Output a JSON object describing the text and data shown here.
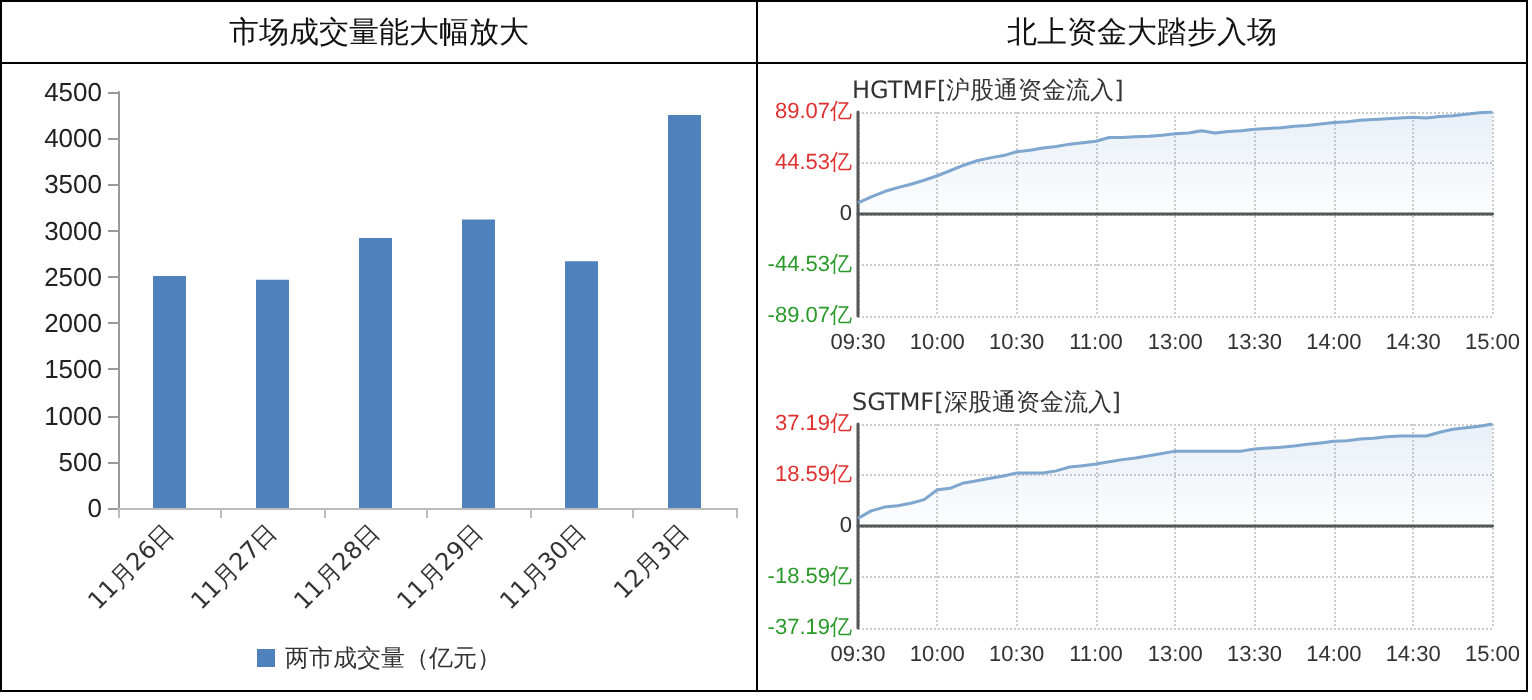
{
  "chart_data": [
    {
      "type": "bar",
      "title": "市场成交量能大幅放大",
      "categories": [
        "11月26日",
        "11月27日",
        "11月28日",
        "11月29日",
        "11月30日",
        "12月3日"
      ],
      "series": [
        {
          "name": "两市成交量（亿元）",
          "color": "#4f81bd",
          "values": [
            2510,
            2470,
            2920,
            3120,
            2670,
            4250
          ]
        }
      ],
      "ylim": [
        0,
        4500
      ],
      "yticks": [
        0,
        500,
        1000,
        1500,
        2000,
        2500,
        3000,
        3500,
        4000,
        4500
      ],
      "grid": false,
      "legend": "bottom"
    },
    {
      "type": "area",
      "title": "北上资金大踏步入场",
      "subtitle": "HGTMF[沪股通资金流入]",
      "categories": [
        "09:30",
        null,
        null,
        null,
        null,
        null,
        "10:00",
        null,
        null,
        null,
        null,
        null,
        "10:30",
        null,
        null,
        null,
        null,
        null,
        "11:00",
        null,
        null,
        null,
        null,
        null,
        "13:00",
        null,
        null,
        null,
        null,
        null,
        "13:30",
        null,
        null,
        null,
        null,
        null,
        "14:00",
        null,
        null,
        null,
        null,
        null,
        "14:30",
        null,
        null,
        null,
        null,
        null,
        "15:00"
      ],
      "series": [
        {
          "color": "#7ea6cf",
          "values": [
            9.8,
            15,
            19.6,
            23,
            26,
            29.5,
            33.4,
            38,
            42.6,
            46.5,
            49,
            51,
            54.4,
            55.7,
            57.6,
            59,
            61,
            62.2,
            63.5,
            66.8,
            66.8,
            67.5,
            68,
            68.8,
            70,
            70.7,
            72.7,
            70.7,
            72,
            72.7,
            74,
            74.7,
            75.3,
            76.6,
            77.3,
            78.6,
            80,
            80.6,
            81.9,
            82.5,
            83.2,
            83.8,
            84.5,
            83.8,
            85.2,
            85.8,
            87.1,
            88.4,
            89.07
          ]
        }
      ],
      "ylim": [
        -89.07,
        89.07
      ],
      "yticks": [
        {
          "value": -89.07,
          "label": "-89.07亿"
        },
        {
          "value": -44.53,
          "label": "-44.53亿"
        },
        0,
        {
          "value": 44.53,
          "label": "44.53亿"
        },
        {
          "value": 89.07,
          "label": "89.07亿"
        }
      ],
      "grid": true,
      "legend": false
    },
    {
      "type": "area",
      "title": "SGTMF[深股通资金流入]",
      "categories": [
        "09:30",
        null,
        null,
        null,
        null,
        null,
        "10:00",
        null,
        null,
        null,
        null,
        null,
        "10:30",
        null,
        null,
        null,
        null,
        null,
        "11:00",
        null,
        null,
        null,
        null,
        null,
        "13:00",
        null,
        null,
        null,
        null,
        null,
        "13:30",
        null,
        null,
        null,
        null,
        null,
        "14:00",
        null,
        null,
        null,
        null,
        null,
        "14:30",
        null,
        null,
        null,
        null,
        null,
        "15:00"
      ],
      "series": [
        {
          "color": "#7ea6cf",
          "values": [
            2.8,
            5.5,
            6.9,
            7.4,
            8.3,
            9.6,
            13.2,
            13.8,
            15.7,
            16.5,
            17.4,
            18.2,
            19.3,
            19.3,
            19.3,
            20.1,
            21.5,
            22,
            22.6,
            23.4,
            24.2,
            24.8,
            25.6,
            26.4,
            27.3,
            27.3,
            27.3,
            27.3,
            27.3,
            27.3,
            28.1,
            28.4,
            28.7,
            29.2,
            29.8,
            30.3,
            30.9,
            31.1,
            31.7,
            32,
            32.5,
            32.8,
            32.8,
            32.8,
            34.2,
            35.3,
            35.8,
            36.4,
            37.19
          ]
        }
      ],
      "ylim": [
        -37.19,
        37.19
      ],
      "yticks": [
        {
          "value": -37.19,
          "label": "-37.19亿"
        },
        {
          "value": -18.59,
          "label": "-18.59亿"
        },
        0,
        {
          "value": 18.59,
          "label": "18.59亿"
        },
        {
          "value": 37.19,
          "label": "37.19亿"
        }
      ],
      "grid": true,
      "legend": false
    }
  ]
}
